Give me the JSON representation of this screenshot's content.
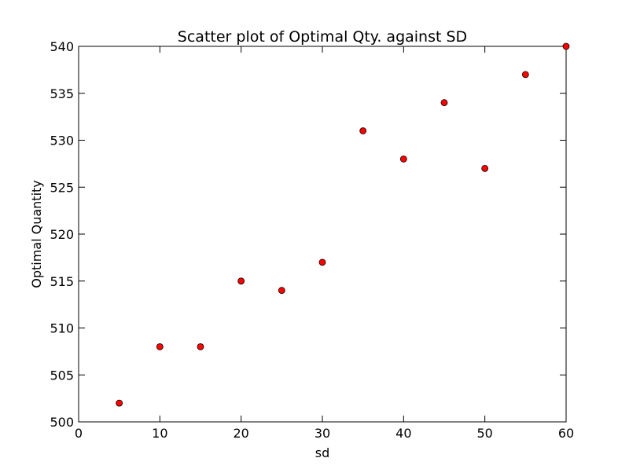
{
  "chart_data": {
    "type": "scatter",
    "title": "Scatter plot of Optimal Qty. against SD",
    "xlabel": "sd",
    "ylabel": "Optimal Quantity",
    "xlim": [
      0,
      60
    ],
    "ylim": [
      500,
      540
    ],
    "xticks": [
      "0",
      "10",
      "20",
      "30",
      "40",
      "50",
      "60"
    ],
    "yticks": [
      "500",
      "505",
      "510",
      "515",
      "520",
      "525",
      "530",
      "535",
      "540"
    ],
    "grid": false,
    "legend": "none",
    "marker_color": "#ff0000",
    "marker_edge_color": "#000000",
    "series": [
      {
        "x": [
          5,
          10,
          15,
          20,
          25,
          30,
          35,
          40,
          45,
          50,
          55,
          60
        ],
        "y": [
          502,
          508,
          508,
          515,
          514,
          517,
          531,
          528,
          534,
          527,
          537,
          540
        ]
      }
    ]
  }
}
